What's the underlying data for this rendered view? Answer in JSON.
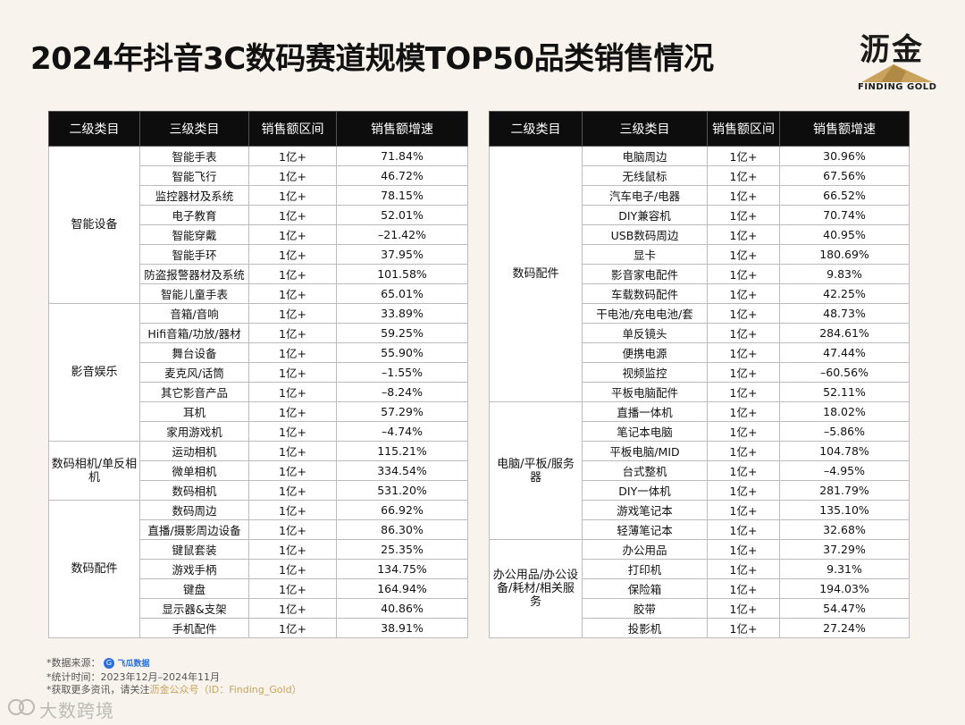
{
  "title": "2024年抖音3C数码赛道规模TOP50品类销售情况",
  "logo": {
    "cn": "沥金",
    "en": "FINDING GOLD"
  },
  "headers": [
    "二级类目",
    "三级类目",
    "销售额区间",
    "销售额增速"
  ],
  "left_table": [
    {
      "category": "智能设备",
      "items": [
        {
          "name": "智能手表",
          "range": "1亿+",
          "growth": "71.84%"
        },
        {
          "name": "智能飞行",
          "range": "1亿+",
          "growth": "46.72%"
        },
        {
          "name": "监控器材及系统",
          "range": "1亿+",
          "growth": "78.15%"
        },
        {
          "name": "电子教育",
          "range": "1亿+",
          "growth": "52.01%"
        },
        {
          "name": "智能穿戴",
          "range": "1亿+",
          "growth": "–21.42%"
        },
        {
          "name": "智能手环",
          "range": "1亿+",
          "growth": "37.95%"
        },
        {
          "name": "防盗报警器材及系统",
          "range": "1亿+",
          "growth": "101.58%"
        },
        {
          "name": "智能儿童手表",
          "range": "1亿+",
          "growth": "65.01%"
        }
      ]
    },
    {
      "category": "影音娱乐",
      "items": [
        {
          "name": "音箱/音响",
          "range": "1亿+",
          "growth": "33.89%"
        },
        {
          "name": "Hifi音箱/功放/器材",
          "range": "1亿+",
          "growth": "59.25%"
        },
        {
          "name": "舞台设备",
          "range": "1亿+",
          "growth": "55.90%"
        },
        {
          "name": "麦克风/话筒",
          "range": "1亿+",
          "growth": "–1.55%"
        },
        {
          "name": "其它影音产品",
          "range": "1亿+",
          "growth": "–8.24%"
        },
        {
          "name": "耳机",
          "range": "1亿+",
          "growth": "57.29%"
        },
        {
          "name": "家用游戏机",
          "range": "1亿+",
          "growth": "–4.74%"
        }
      ]
    },
    {
      "category": "数码相机/单反相机",
      "items": [
        {
          "name": "运动相机",
          "range": "1亿+",
          "growth": "115.21%"
        },
        {
          "name": "微单相机",
          "range": "1亿+",
          "growth": "334.54%"
        },
        {
          "name": "数码相机",
          "range": "1亿+",
          "growth": "531.20%"
        }
      ]
    },
    {
      "category": "数码配件",
      "items": [
        {
          "name": "数码周边",
          "range": "1亿+",
          "growth": "66.92%"
        },
        {
          "name": "直播/摄影周边设备",
          "range": "1亿+",
          "growth": "86.30%"
        },
        {
          "name": "键鼠套装",
          "range": "1亿+",
          "growth": "25.35%"
        },
        {
          "name": "游戏手柄",
          "range": "1亿+",
          "growth": "134.75%"
        },
        {
          "name": "键盘",
          "range": "1亿+",
          "growth": "164.94%"
        },
        {
          "name": "显示器&支架",
          "range": "1亿+",
          "growth": "40.86%"
        },
        {
          "name": "手机配件",
          "range": "1亿+",
          "growth": "38.91%"
        }
      ]
    }
  ],
  "right_table": [
    {
      "category": "数码配件",
      "items": [
        {
          "name": "电脑周边",
          "range": "1亿+",
          "growth": "30.96%"
        },
        {
          "name": "无线鼠标",
          "range": "1亿+",
          "growth": "67.56%"
        },
        {
          "name": "汽车电子/电器",
          "range": "1亿+",
          "growth": "66.52%"
        },
        {
          "name": "DIY兼容机",
          "range": "1亿+",
          "growth": "70.74%"
        },
        {
          "name": "USB数码周边",
          "range": "1亿+",
          "growth": "40.95%"
        },
        {
          "name": "显卡",
          "range": "1亿+",
          "growth": "180.69%"
        },
        {
          "name": "影音家电配件",
          "range": "1亿+",
          "growth": "9.83%"
        },
        {
          "name": "车载数码配件",
          "range": "1亿+",
          "growth": "42.25%"
        },
        {
          "name": "干电池/充电电池/套",
          "range": "1亿+",
          "growth": "48.73%"
        },
        {
          "name": "单反镜头",
          "range": "1亿+",
          "growth": "284.61%"
        },
        {
          "name": "便携电源",
          "range": "1亿+",
          "growth": "47.44%"
        },
        {
          "name": "视频监控",
          "range": "1亿+",
          "growth": "–60.56%"
        },
        {
          "name": "平板电脑配件",
          "range": "1亿+",
          "growth": "52.11%"
        }
      ]
    },
    {
      "category": "电脑/平板/服务器",
      "items": [
        {
          "name": "直播一体机",
          "range": "1亿+",
          "growth": "18.02%"
        },
        {
          "name": "笔记本电脑",
          "range": "1亿+",
          "growth": "–5.86%"
        },
        {
          "name": "平板电脑/MID",
          "range": "1亿+",
          "growth": "104.78%"
        },
        {
          "name": "台式整机",
          "range": "1亿+",
          "growth": "–4.95%"
        },
        {
          "name": "DIY一体机",
          "range": "1亿+",
          "growth": "281.79%"
        },
        {
          "name": "游戏笔记本",
          "range": "1亿+",
          "growth": "135.10%"
        },
        {
          "name": "轻薄笔记本",
          "range": "1亿+",
          "growth": "32.68%"
        }
      ]
    },
    {
      "category": "办公用品/办公设备/耗材/相关服务",
      "items": [
        {
          "name": "办公用品",
          "range": "1亿+",
          "growth": "37.29%"
        },
        {
          "name": "打印机",
          "range": "1亿+",
          "growth": "9.31%"
        },
        {
          "name": "保险箱",
          "range": "1亿+",
          "growth": "194.03%"
        },
        {
          "name": "胶带",
          "range": "1亿+",
          "growth": "54.47%"
        },
        {
          "name": "投影机",
          "range": "1亿+",
          "growth": "27.24%"
        }
      ]
    }
  ],
  "footer": {
    "source_label": "*数据来源：",
    "source_badge": "G",
    "source_name": "飞瓜数据",
    "period": "*统计时间：2023年12月–2024年11月",
    "more_prefix": "*获取更多资讯，请关注",
    "more_highlight": "沥金公众号（ID：Finding_Gold）"
  },
  "watermark": {
    "text": "大数跨境"
  },
  "colors": {
    "header_bg": "#0d0d0d",
    "page_bg": "#f8f3ec",
    "accent_gold": "#c9a35b"
  }
}
